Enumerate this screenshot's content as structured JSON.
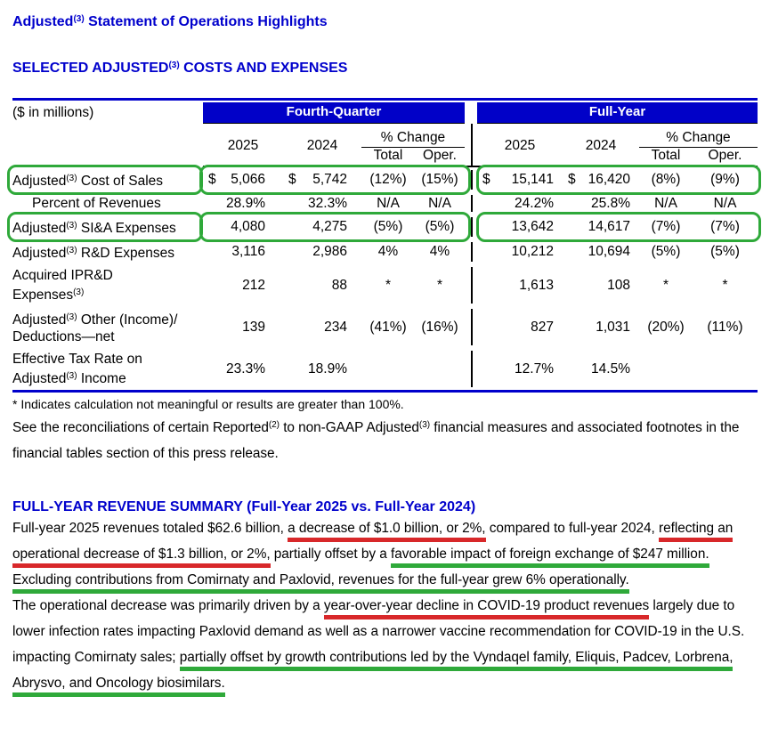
{
  "colors": {
    "heading_blue": "#0000cc",
    "bar_blue": "#0101c8",
    "table_border_blue": "#0000cc",
    "annotation_red": "#d8282a",
    "annotation_green": "#2fa93a"
  },
  "headings": {
    "title": [
      {
        "t": "Adjusted"
      },
      {
        "t": "(3)",
        "sup": true
      },
      {
        "t": " Statement of Operations Highlights"
      }
    ],
    "costs_section": [
      {
        "t": "SELECTED ADJUSTED"
      },
      {
        "t": "(3)",
        "sup": true
      },
      {
        "t": " COSTS AND EXPENSES"
      }
    ],
    "fy_summary": "FULL-YEAR REVENUE SUMMARY (Full-Year 2025 vs. Full-Year 2024)"
  },
  "table": {
    "unit_label": "($ in millions)",
    "currency": "$",
    "group_headers": [
      "Fourth-Quarter",
      "Full-Year"
    ],
    "subheaders": {
      "col_2025": "2025",
      "col_2024": "2024",
      "pct_change": "% Change",
      "total": "Total",
      "oper": "Oper."
    },
    "rows": [
      {
        "label": [
          {
            "t": "Adjusted"
          },
          {
            "t": "(3)",
            "sup": true
          },
          {
            "t": " Cost of Sales"
          }
        ],
        "dollar": true,
        "highlight": true,
        "q4": [
          "5,066",
          "5,742",
          "(12%)",
          "(15%)"
        ],
        "fy": [
          "15,141",
          "16,420",
          "(8%)",
          "(9%)"
        ]
      },
      {
        "label": [
          {
            "t": "Percent of Revenues"
          }
        ],
        "indent": true,
        "q4": [
          "28.9%",
          "32.3%",
          "N/A",
          "N/A"
        ],
        "fy": [
          "24.2%",
          "25.8%",
          "N/A",
          "N/A"
        ]
      },
      {
        "label": [
          {
            "t": "Adjusted"
          },
          {
            "t": "(3)",
            "sup": true
          },
          {
            "t": " SI&A Expenses"
          }
        ],
        "highlight": true,
        "q4": [
          "4,080",
          "4,275",
          "(5%)",
          "(5%)"
        ],
        "fy": [
          "13,642",
          "14,617",
          "(7%)",
          "(7%)"
        ]
      },
      {
        "label": [
          {
            "t": "Adjusted"
          },
          {
            "t": "(3)",
            "sup": true
          },
          {
            "t": " R&D Expenses"
          }
        ],
        "q4": [
          "3,116",
          "2,986",
          "4%",
          "4%"
        ],
        "fy": [
          "10,212",
          "10,694",
          "(5%)",
          "(5%)"
        ]
      },
      {
        "label": [
          {
            "t": "Acquired IPR&D"
          },
          {
            "br": true
          },
          {
            "t": "Expenses"
          },
          {
            "t": "(3)",
            "sup": true
          }
        ],
        "q4": [
          "212",
          "88",
          "*",
          "*"
        ],
        "fy": [
          "1,613",
          "108",
          "*",
          "*"
        ]
      },
      {
        "label": [
          {
            "t": "Adjusted"
          },
          {
            "t": "(3)",
            "sup": true
          },
          {
            "t": " Other (Income)/"
          },
          {
            "br": true
          },
          {
            "t": "Deductions—net"
          }
        ],
        "q4": [
          "139",
          "234",
          "(41%)",
          "(16%)"
        ],
        "fy": [
          "827",
          "1,031",
          "(20%)",
          "(11%)"
        ]
      },
      {
        "label": [
          {
            "t": "Effective Tax Rate on"
          },
          {
            "br": true
          },
          {
            "t": "Adjusted"
          },
          {
            "t": "(3)",
            "sup": true
          },
          {
            "t": " Income"
          }
        ],
        "q4": [
          "23.3%",
          "18.9%",
          "",
          ""
        ],
        "fy": [
          "12.7%",
          "14.5%",
          "",
          ""
        ]
      }
    ],
    "footnote": "* Indicates calculation not meaningful or results are greater than 100%."
  },
  "paragraphs": {
    "reconciliation": [
      {
        "t": "See the reconciliations of certain Reported"
      },
      {
        "t": "(2)",
        "sup": true
      },
      {
        "t": " to non-GAAP Adjusted"
      },
      {
        "t": "(3)",
        "sup": true
      },
      {
        "t": " financial measures and associated footnotes in the financial tables section of this press release."
      }
    ],
    "fy_summary_1": [
      {
        "t": "Full-year 2025 revenues totaled $62.6 billion, "
      },
      {
        "t": "a decrease of $1.0 billion, or 2%,",
        "mark": "red"
      },
      {
        "t": " compared to full-year 2024, "
      },
      {
        "t": "reflecting an operational decrease of $1.3 billion, or 2%,",
        "mark": "red"
      },
      {
        "t": " partially offset by a "
      },
      {
        "t": "favorable impact of foreign exchange of $247 million. Excluding contributions from Comirnaty and Paxlovid, revenues for the full-year grew 6% operationally.",
        "mark": "green"
      }
    ],
    "fy_summary_2": [
      {
        "t": "The operational decrease was primarily driven by a "
      },
      {
        "t": "year-over-year decline in COVID-19 product revenues",
        "mark": "red"
      },
      {
        "t": " largely due to lower infection rates impacting Paxlovid demand as well as a narrower vaccine recommendation for COVID-19 in the U.S. impacting Comirnaty sales; "
      },
      {
        "t": "partially offset by growth contributions led by the Vyndaqel family, Eliquis, Padcev, Lorbrena, Abrysvo, and Oncology biosimilars.",
        "mark": "green"
      }
    ]
  }
}
